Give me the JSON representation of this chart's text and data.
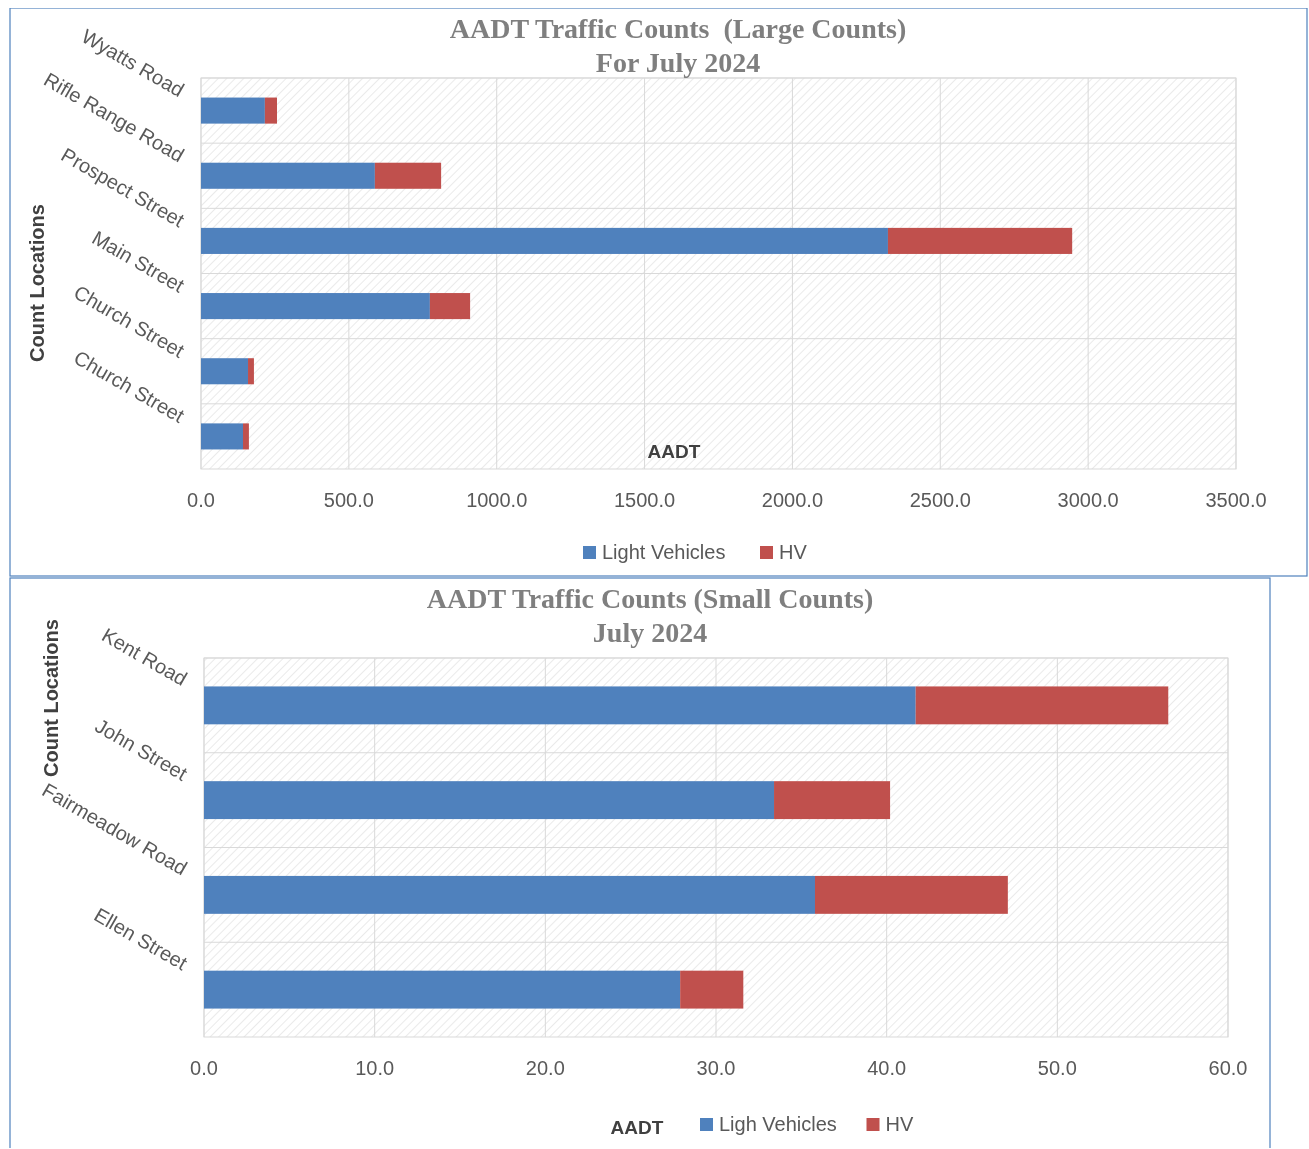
{
  "chart_data": [
    {
      "type": "bar",
      "orientation": "horizontal",
      "stacked": true,
      "title": "AADT Traffic Counts  (Large Counts)",
      "subtitle": "For July 2024",
      "xlabel": "AADT",
      "ylabel": "Count Locations",
      "categories": [
        "Wyatts Road",
        "Rifle Range Road",
        "Prospect Street",
        "Main Street",
        "Church Street",
        "Church Street"
      ],
      "series": [
        {
          "name": "Light Vehicles",
          "color": "#4f81bd",
          "values": [
            216,
            588,
            2323,
            774,
            159,
            142
          ]
        },
        {
          "name": "HV",
          "color": "#c0504d",
          "values": [
            41,
            224,
            623,
            136,
            20,
            20
          ]
        }
      ],
      "xlim": [
        0,
        3500
      ],
      "xticks": [
        {
          "value": 0,
          "label": "0.0"
        },
        {
          "value": 500,
          "label": "500.0"
        },
        {
          "value": 1000,
          "label": "1000.0"
        },
        {
          "value": 1500,
          "label": "1500.0"
        },
        {
          "value": 2000,
          "label": "2000.0"
        },
        {
          "value": 2500,
          "label": "2500.0"
        },
        {
          "value": 3000,
          "label": "3000.0"
        },
        {
          "value": 3500,
          "label": "3500.0"
        }
      ],
      "grid": true,
      "legend": "bottom"
    },
    {
      "type": "bar",
      "orientation": "horizontal",
      "stacked": true,
      "title": "AADT Traffic Counts (Small Counts)",
      "subtitle": "July 2024",
      "xlabel": "AADT",
      "ylabel": "Count Locations",
      "categories": [
        "Kent Road",
        "John Street",
        "Fairmeadow Road",
        "Ellen Street"
      ],
      "series": [
        {
          "name": "Ligh Vehicles",
          "color": "#4f81bd",
          "values": [
            41.7,
            33.4,
            35.8,
            27.9
          ]
        },
        {
          "name": "HV",
          "color": "#c0504d",
          "values": [
            14.8,
            6.8,
            11.3,
            3.7
          ]
        }
      ],
      "xlim": [
        0,
        60
      ],
      "xticks": [
        {
          "value": 0,
          "label": "0.0"
        },
        {
          "value": 10,
          "label": "10.0"
        },
        {
          "value": 20,
          "label": "20.0"
        },
        {
          "value": 30,
          "label": "30.0"
        },
        {
          "value": 40,
          "label": "40.0"
        },
        {
          "value": 50,
          "label": "50.0"
        },
        {
          "value": 60,
          "label": "60.0"
        }
      ],
      "grid": true,
      "legend": "bottom"
    }
  ]
}
